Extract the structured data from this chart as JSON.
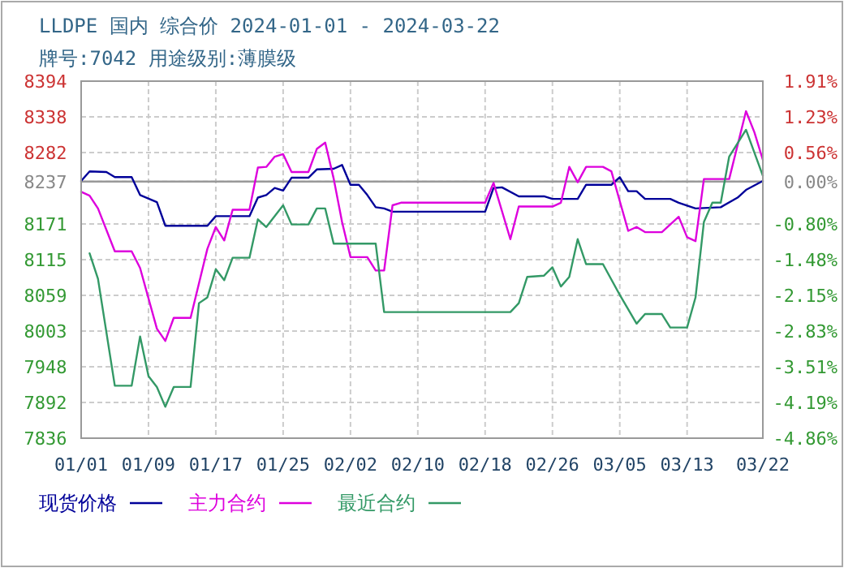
{
  "chart_data": {
    "type": "line",
    "title": "LLDPE 国内 综合价 2024-01-01 - 2024-03-22",
    "subtitle": "牌号:7042 用途级别:薄膜级",
    "xlim": [
      "2024-01-01",
      "2024-03-22"
    ],
    "xticks": [
      {
        "value": "2024-01-01",
        "label": "01/01"
      },
      {
        "value": "2024-01-09",
        "label": "01/09"
      },
      {
        "value": "2024-01-17",
        "label": "01/17"
      },
      {
        "value": "2024-01-25",
        "label": "01/25"
      },
      {
        "value": "2024-02-02",
        "label": "02/02"
      },
      {
        "value": "2024-02-10",
        "label": "02/10"
      },
      {
        "value": "2024-02-18",
        "label": "02/18"
      },
      {
        "value": "2024-02-26",
        "label": "02/26"
      },
      {
        "value": "2024-03-05",
        "label": "03/05"
      },
      {
        "value": "2024-03-13",
        "label": "03/13"
      },
      {
        "value": "2024-03-22",
        "label": "03/22"
      }
    ],
    "ylim": [
      7836,
      8394
    ],
    "yticks": [
      8394,
      {
        "value": 8338.2,
        "label": "8338"
      },
      {
        "value": 8282.4,
        "label": "8282"
      },
      8237,
      {
        "value": 8170.8,
        "label": "8171"
      },
      8115,
      {
        "value": 8059.2,
        "label": "8059"
      },
      {
        "value": 8003.4,
        "label": "8003"
      },
      {
        "value": 7947.6,
        "label": "7948"
      },
      {
        "value": 7891.8,
        "label": "7892"
      },
      7836
    ],
    "y2lim": [
      -4.86,
      1.91
    ],
    "y2ticks": [
      {
        "value": 1.91,
        "label": "1.91%"
      },
      {
        "value": 1.233,
        "label": "1.23%"
      },
      {
        "value": 0.556,
        "label": "0.56%"
      },
      {
        "value": 0,
        "label": "0.00%"
      },
      {
        "value": -0.798,
        "label": "-0.80%"
      },
      {
        "value": -1.475,
        "label": "-1.48%"
      },
      {
        "value": -2.152,
        "label": "-2.15%"
      },
      {
        "value": -2.829,
        "label": "-2.83%"
      },
      {
        "value": -3.506,
        "label": "-3.51%"
      },
      {
        "value": -4.19,
        "label": "-4.19%"
      },
      {
        "value": -4.86,
        "label": "-4.86%"
      }
    ],
    "ref_lines": [
      {
        "axis": "y",
        "value": 8237,
        "color": "#999999"
      }
    ],
    "grid": true,
    "legend": "bottom",
    "marker": "none",
    "line_style": "solid",
    "series": [
      {
        "name": "现货价格",
        "color": "#000099",
        "x": [
          "2024-01-01",
          "2024-01-02",
          "2024-01-04",
          "2024-01-05",
          "2024-01-07",
          "2024-01-08",
          "2024-01-10",
          "2024-01-11",
          "2024-01-16",
          "2024-01-17",
          "2024-01-21",
          "2024-01-22",
          "2024-01-23",
          "2024-01-24",
          "2024-01-25",
          "2024-01-26",
          "2024-01-28",
          "2024-01-29",
          "2024-01-31",
          "2024-02-01",
          "2024-02-02",
          "2024-02-03",
          "2024-02-04",
          "2024-02-05",
          "2024-02-06",
          "2024-02-07",
          "2024-02-18",
          "2024-02-19",
          "2024-02-20",
          "2024-02-22",
          "2024-02-25",
          "2024-02-26",
          "2024-02-29",
          "2024-03-01",
          "2024-03-04",
          "2024-03-05",
          "2024-03-06",
          "2024-03-07",
          "2024-03-08",
          "2024-03-11",
          "2024-03-12",
          "2024-03-14",
          "2024-03-17",
          "2024-03-19",
          "2024-03-20",
          "2024-03-22"
        ],
        "values": [
          8238,
          8253,
          8252,
          8244,
          8244,
          8216,
          8205,
          8168,
          8168,
          8183,
          8183,
          8212,
          8216,
          8227,
          8223,
          8243,
          8243,
          8256,
          8257,
          8263,
          8232,
          8232,
          8216,
          8197,
          8195,
          8190,
          8190,
          8227,
          8228,
          8214,
          8214,
          8210,
          8210,
          8232,
          8232,
          8244,
          8222,
          8222,
          8210,
          8210,
          8204,
          8195,
          8197,
          8212,
          8224,
          8238
        ]
      },
      {
        "name": "主力合约",
        "color": "#dd00dd",
        "x": [
          "2024-01-01",
          "2024-01-02",
          "2024-01-03",
          "2024-01-05",
          "2024-01-07",
          "2024-01-08",
          "2024-01-10",
          "2024-01-11",
          "2024-01-12",
          "2024-01-14",
          "2024-01-16",
          "2024-01-17",
          "2024-01-18",
          "2024-01-19",
          "2024-01-21",
          "2024-01-22",
          "2024-01-23",
          "2024-01-24",
          "2024-01-25",
          "2024-01-26",
          "2024-01-28",
          "2024-01-29",
          "2024-01-30",
          "2024-01-31",
          "2024-02-01",
          "2024-02-02",
          "2024-02-04",
          "2024-02-05",
          "2024-02-06",
          "2024-02-07",
          "2024-02-08",
          "2024-02-18",
          "2024-02-19",
          "2024-02-21",
          "2024-02-22",
          "2024-02-26",
          "2024-02-27",
          "2024-02-28",
          "2024-02-29",
          "2024-03-01",
          "2024-03-03",
          "2024-03-04",
          "2024-03-06",
          "2024-03-07",
          "2024-03-08",
          "2024-03-10",
          "2024-03-12",
          "2024-03-13",
          "2024-03-14",
          "2024-03-15",
          "2024-03-18",
          "2024-03-20",
          "2024-03-21",
          "2024-03-22"
        ],
        "values": [
          8221,
          8215,
          8195,
          8128,
          8128,
          8102,
          8007,
          7988,
          8024,
          8024,
          8132,
          8166,
          8145,
          8193,
          8193,
          8259,
          8260,
          8276,
          8280,
          8252,
          8252,
          8288,
          8298,
          8242,
          8174,
          8119,
          8119,
          8098,
          8098,
          8200,
          8204,
          8204,
          8235,
          8147,
          8198,
          8198,
          8204,
          8260,
          8236,
          8260,
          8260,
          8253,
          8160,
          8166,
          8158,
          8158,
          8182,
          8150,
          8144,
          8241,
          8241,
          8347,
          8314,
          8271
        ]
      },
      {
        "name": "最近合约",
        "color": "#339966",
        "x": [
          "2024-01-02",
          "2024-01-03",
          "2024-01-05",
          "2024-01-07",
          "2024-01-08",
          "2024-01-09",
          "2024-01-10",
          "2024-01-11",
          "2024-01-12",
          "2024-01-14",
          "2024-01-15",
          "2024-01-16",
          "2024-01-17",
          "2024-01-18",
          "2024-01-19",
          "2024-01-21",
          "2024-01-22",
          "2024-01-23",
          "2024-01-25",
          "2024-01-26",
          "2024-01-28",
          "2024-01-29",
          "2024-01-30",
          "2024-01-31",
          "2024-02-05",
          "2024-02-06",
          "2024-02-21",
          "2024-02-22",
          "2024-02-23",
          "2024-02-25",
          "2024-02-26",
          "2024-02-27",
          "2024-02-28",
          "2024-02-29",
          "2024-03-01",
          "2024-03-03",
          "2024-03-05",
          "2024-03-07",
          "2024-03-08",
          "2024-03-10",
          "2024-03-11",
          "2024-03-13",
          "2024-03-14",
          "2024-03-15",
          "2024-03-16",
          "2024-03-17",
          "2024-03-18",
          "2024-03-20",
          "2024-03-22"
        ],
        "values": [
          8125,
          8085,
          7918,
          7918,
          7995,
          7933,
          7916,
          7885,
          7916,
          7916,
          8047,
          8056,
          8100,
          8083,
          8118,
          8118,
          8178,
          8166,
          8200,
          8170,
          8170,
          8195,
          8195,
          8140,
          8140,
          8033,
          8033,
          8047,
          8088,
          8090,
          8103,
          8073,
          8088,
          8147,
          8108,
          8108,
          8060,
          8015,
          8030,
          8030,
          8009,
          8009,
          8056,
          8174,
          8204,
          8204,
          8276,
          8318,
          8246
        ]
      }
    ]
  }
}
